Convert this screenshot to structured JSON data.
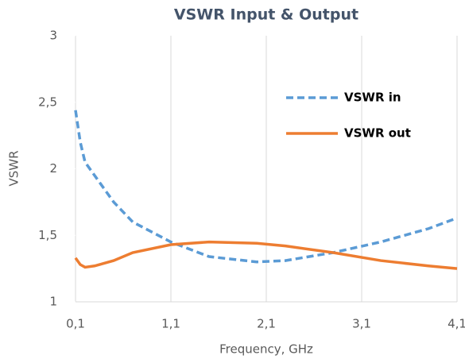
{
  "chart_data": {
    "type": "line",
    "title": "VSWR Input & Output",
    "x_label": "Frequency, GHz",
    "y_label": "VSWR",
    "x": [
      0.1,
      0.15,
      0.2,
      0.3,
      0.5,
      0.7,
      1.1,
      1.5,
      2.0,
      2.3,
      2.8,
      3.3,
      3.8,
      4.1
    ],
    "series": [
      {
        "name": "VSWR in",
        "color": "#5b9bd5",
        "dash": true,
        "values": [
          2.44,
          2.2,
          2.05,
          1.95,
          1.75,
          1.6,
          1.45,
          1.34,
          1.3,
          1.31,
          1.37,
          1.45,
          1.55,
          1.63
        ]
      },
      {
        "name": "VSWR out",
        "color": "#ed7d31",
        "dash": false,
        "values": [
          1.33,
          1.28,
          1.26,
          1.27,
          1.31,
          1.37,
          1.43,
          1.45,
          1.44,
          1.42,
          1.37,
          1.31,
          1.27,
          1.25
        ]
      }
    ],
    "xlim": [
      0.1,
      4.1
    ],
    "xticks": [
      {
        "value": 0.1,
        "label": "0,1"
      },
      {
        "value": 1.1,
        "label": "1,1"
      },
      {
        "value": 2.1,
        "label": "2,1"
      },
      {
        "value": 3.1,
        "label": "3,1"
      },
      {
        "value": 4.1,
        "label": "4,1"
      }
    ],
    "ylim": [
      1,
      3
    ],
    "yticks": [
      1,
      {
        "value": 1.5,
        "label": "1,5"
      },
      2,
      {
        "value": 2.5,
        "label": "2,5"
      },
      3
    ],
    "grid": "x",
    "legend": "upper right"
  }
}
